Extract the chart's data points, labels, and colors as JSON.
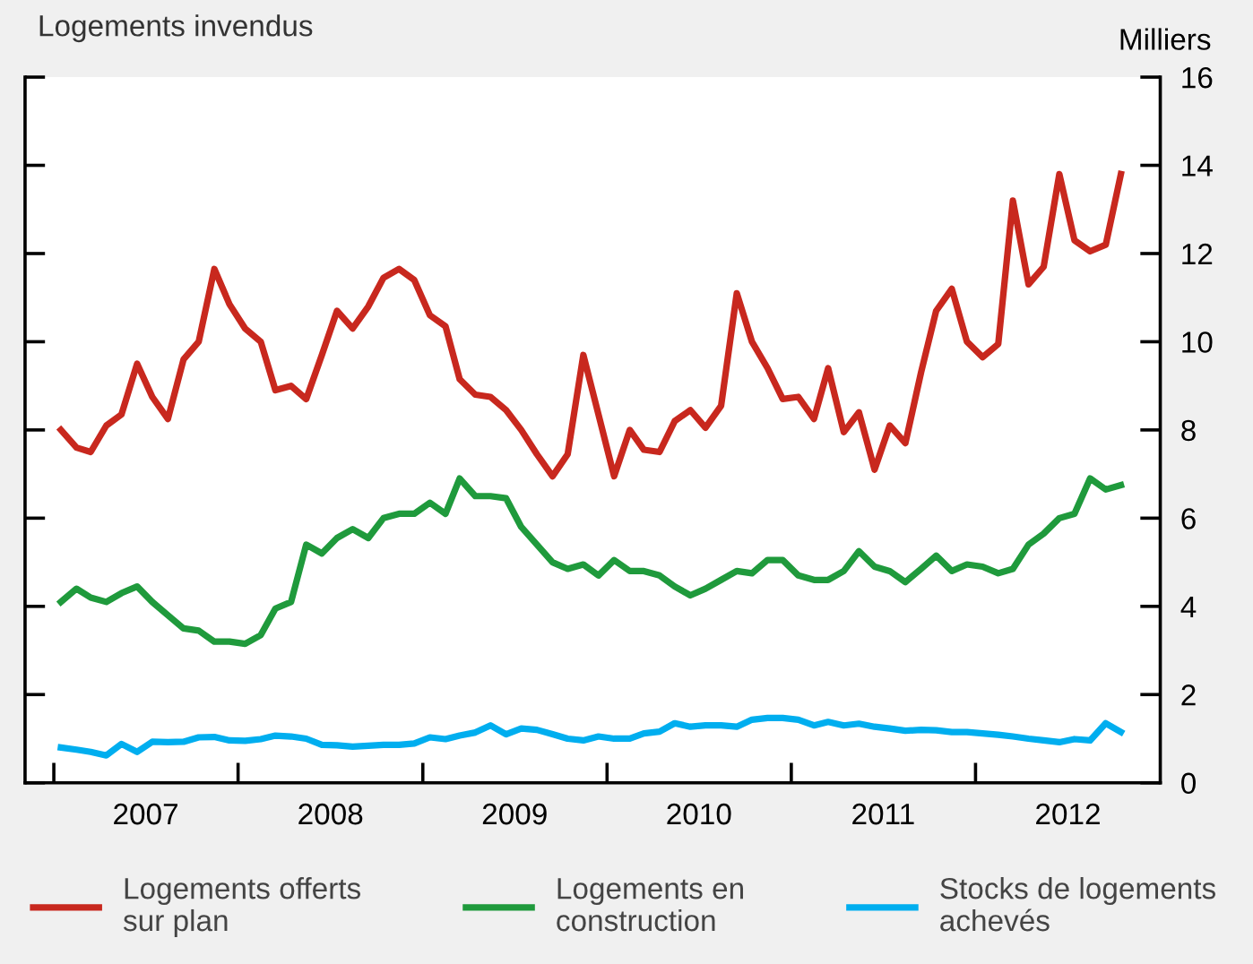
{
  "chart_data": {
    "type": "line",
    "title": "Logements invendus",
    "ylabel": "Milliers",
    "x": [
      "2007-01-15",
      "2007-02-15",
      "2007-03-15",
      "2007-04-15",
      "2007-05-15",
      "2007-06-15",
      "2007-07-15",
      "2007-08-15",
      "2007-09-15",
      "2007-10-15",
      "2007-11-15",
      "2007-12-15",
      "2008-01-15",
      "2008-02-15",
      "2008-03-15",
      "2008-04-15",
      "2008-05-15",
      "2008-06-15",
      "2008-07-15",
      "2008-08-15",
      "2008-09-15",
      "2008-10-15",
      "2008-11-15",
      "2008-12-15",
      "2009-01-15",
      "2009-02-15",
      "2009-03-15",
      "2009-04-15",
      "2009-05-15",
      "2009-06-15",
      "2009-07-15",
      "2009-08-15",
      "2009-09-15",
      "2009-10-15",
      "2009-11-15",
      "2009-12-15",
      "2010-01-15",
      "2010-02-15",
      "2010-03-15",
      "2010-04-15",
      "2010-05-15",
      "2010-06-15",
      "2010-07-15",
      "2010-08-15",
      "2010-09-15",
      "2010-10-15",
      "2010-11-15",
      "2010-12-15",
      "2011-01-15",
      "2011-02-15",
      "2011-03-15",
      "2011-04-15",
      "2011-05-15",
      "2011-06-15",
      "2011-07-15",
      "2011-08-15",
      "2011-09-15",
      "2011-10-15",
      "2011-11-15",
      "2011-12-15",
      "2012-01-15",
      "2012-02-15",
      "2012-03-15",
      "2012-04-15",
      "2012-05-15",
      "2012-06-15",
      "2012-07-15",
      "2012-08-15",
      "2012-09-15",
      "2012-10-15"
    ],
    "series": [
      {
        "name": "Logements offerts\nsur plan",
        "color": "#c8281e",
        "values": [
          8.0,
          7.6,
          7.5,
          8.1,
          8.35,
          9.5,
          8.75,
          8.25,
          9.6,
          10.0,
          11.65,
          10.85,
          10.3,
          10.0,
          8.9,
          9.0,
          8.7,
          9.7,
          10.7,
          10.3,
          10.8,
          11.45,
          11.65,
          11.4,
          10.6,
          10.35,
          9.15,
          8.8,
          8.75,
          8.45,
          8.0,
          7.45,
          6.95,
          7.45,
          9.7,
          8.35,
          6.95,
          8.0,
          7.55,
          7.5,
          8.2,
          8.45,
          8.05,
          8.55,
          11.1,
          10.0,
          9.4,
          8.7,
          8.75,
          8.25,
          9.4,
          7.95,
          8.4,
          7.1,
          8.1,
          7.7,
          9.3,
          10.7,
          11.2,
          10.0,
          9.65,
          9.95,
          13.2,
          11.3,
          11.7,
          13.8,
          12.3,
          12.05,
          12.2,
          13.8
        ]
      },
      {
        "name": "Logements en\nconstruction",
        "color": "#1f9a3c",
        "values": [
          4.1,
          4.4,
          4.2,
          4.1,
          4.3,
          4.45,
          4.1,
          3.8,
          3.5,
          3.45,
          3.2,
          3.2,
          3.15,
          3.35,
          3.95,
          4.1,
          5.4,
          5.2,
          5.55,
          5.75,
          5.55,
          6.0,
          6.1,
          6.1,
          6.35,
          6.1,
          6.9,
          6.5,
          6.5,
          6.45,
          5.8,
          5.4,
          5.0,
          4.85,
          4.95,
          4.7,
          5.05,
          4.8,
          4.8,
          4.7,
          4.45,
          4.25,
          4.4,
          4.6,
          4.8,
          4.75,
          5.05,
          5.05,
          4.7,
          4.6,
          4.6,
          4.8,
          5.25,
          4.9,
          4.8,
          4.55,
          4.85,
          5.15,
          4.8,
          4.95,
          4.9,
          4.75,
          4.85,
          5.4,
          5.65,
          6.0,
          6.1,
          6.9,
          6.65,
          6.75
        ]
      },
      {
        "name": "Stocks de logements\nachevés",
        "color": "#00aeef",
        "values": [
          0.8,
          0.75,
          0.7,
          0.62,
          0.88,
          0.7,
          0.93,
          0.92,
          0.93,
          1.03,
          1.04,
          0.96,
          0.95,
          0.99,
          1.07,
          1.05,
          1.0,
          0.86,
          0.85,
          0.82,
          0.84,
          0.86,
          0.86,
          0.89,
          1.03,
          0.99,
          1.07,
          1.14,
          1.3,
          1.1,
          1.23,
          1.2,
          1.1,
          1.0,
          0.96,
          1.05,
          1.0,
          1.0,
          1.12,
          1.16,
          1.35,
          1.27,
          1.3,
          1.3,
          1.27,
          1.43,
          1.47,
          1.47,
          1.43,
          1.3,
          1.38,
          1.3,
          1.34,
          1.27,
          1.23,
          1.18,
          1.2,
          1.19,
          1.15,
          1.15,
          1.12,
          1.09,
          1.05,
          1.0,
          0.96,
          0.92,
          0.99,
          0.96,
          1.35,
          1.15
        ]
      }
    ],
    "xlim": [
      "2006-11-05",
      "2013-01-01"
    ],
    "xticks": [
      {
        "value": "2007-01-01",
        "label": null
      },
      {
        "value": "2008-01-01",
        "label": null
      },
      {
        "value": "2009-01-01",
        "label": null
      },
      {
        "value": "2010-01-01",
        "label": null
      },
      {
        "value": "2011-01-01",
        "label": null
      },
      {
        "value": "2012-01-01",
        "label": null
      },
      {
        "value": "2007-07-02",
        "label": "2007"
      },
      {
        "value": "2008-07-02",
        "label": "2008"
      },
      {
        "value": "2009-07-02",
        "label": "2009"
      },
      {
        "value": "2010-07-02",
        "label": "2010"
      },
      {
        "value": "2011-07-02",
        "label": "2011"
      },
      {
        "value": "2012-07-02",
        "label": "2012"
      }
    ],
    "ylim": [
      0,
      16
    ],
    "yticks": [
      0,
      2,
      4,
      6,
      8,
      10,
      12,
      14,
      16
    ],
    "grid": false,
    "legend": "bottom",
    "marker": "none",
    "line_style": "solid"
  }
}
